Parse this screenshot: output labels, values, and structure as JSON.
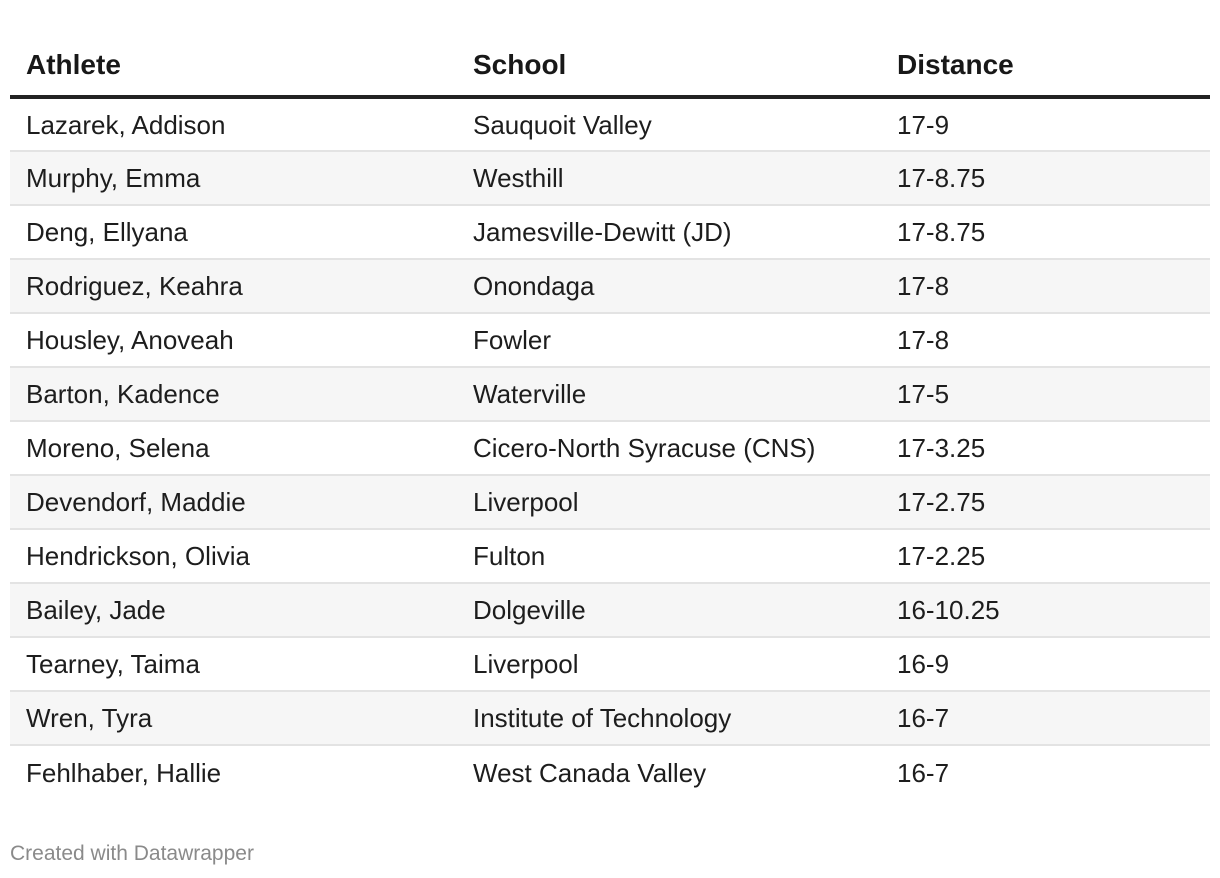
{
  "table": {
    "headers": [
      "Athlete",
      "School",
      "Distance"
    ],
    "rows": [
      [
        "Lazarek, Addison",
        "Sauquoit Valley",
        "17-9"
      ],
      [
        "Murphy, Emma",
        "Westhill",
        "17-8.75"
      ],
      [
        "Deng, Ellyana",
        "Jamesville-Dewitt (JD)",
        "17-8.75"
      ],
      [
        "Rodriguez, Keahra",
        "Onondaga",
        "17-8"
      ],
      [
        "Housley, Anoveah",
        "Fowler",
        "17-8"
      ],
      [
        "Barton, Kadence",
        "Waterville",
        "17-5"
      ],
      [
        "Moreno, Selena",
        "Cicero-North Syracuse (CNS)",
        "17-3.25"
      ],
      [
        "Devendorf, Maddie",
        "Liverpool",
        "17-2.75"
      ],
      [
        "Hendrickson, Olivia",
        "Fulton",
        "17-2.25"
      ],
      [
        "Bailey, Jade",
        "Dolgeville",
        "16-10.25"
      ],
      [
        "Tearney, Taima",
        "Liverpool",
        "16-9"
      ],
      [
        "Wren, Tyra",
        "Institute of Technology",
        "16-7"
      ],
      [
        "Fehlhaber, Hallie",
        "West Canada Valley",
        "16-7"
      ]
    ]
  },
  "footer": {
    "credit": "Created with Datawrapper"
  }
}
